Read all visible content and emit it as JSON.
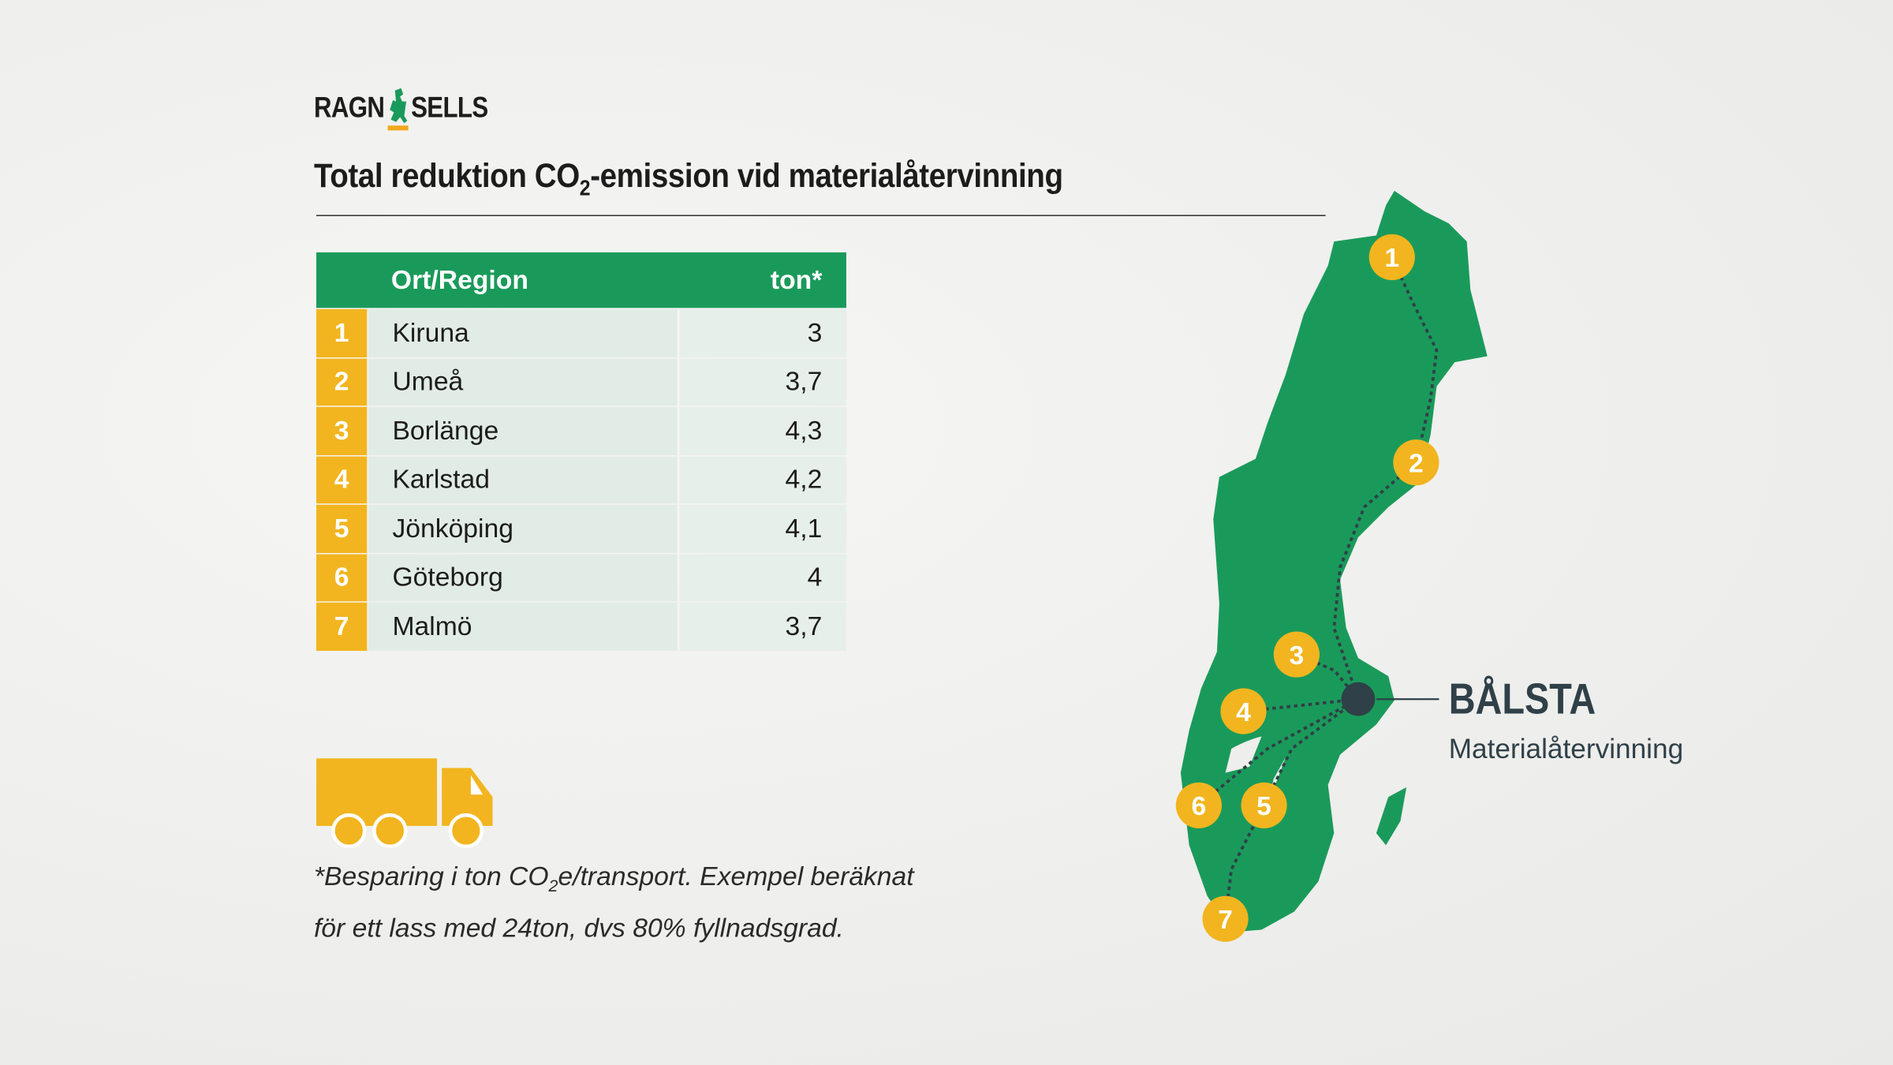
{
  "logo": {
    "left": "RAGN",
    "right": "SELLS"
  },
  "title": {
    "pre": "Total reduktion CO",
    "sub": "2",
    "post": "-emission vid materialåtervinning"
  },
  "table": {
    "headers": [
      "Ort/Region",
      "ton*"
    ],
    "rows": [
      {
        "num": "1",
        "city": "Kiruna",
        "ton": "3"
      },
      {
        "num": "2",
        "city": "Umeå",
        "ton": "3,7"
      },
      {
        "num": "3",
        "city": "Borlänge",
        "ton": "4,3"
      },
      {
        "num": "4",
        "city": "Karlstad",
        "ton": "4,2"
      },
      {
        "num": "5",
        "city": "Jönköping",
        "ton": "4,1"
      },
      {
        "num": "6",
        "city": "Göteborg",
        "ton": "4"
      },
      {
        "num": "7",
        "city": "Malmö",
        "ton": "3,7"
      }
    ]
  },
  "footnote": {
    "line1_pre": "*Besparing i ton CO",
    "line1_sub": "2",
    "line1_post": "e/transport. Exempel beräknat",
    "line2": "för ett lass med 24ton, dvs 80% fyllnadsgrad."
  },
  "map": {
    "markers": [
      "1",
      "2",
      "3",
      "4",
      "5",
      "6",
      "7"
    ],
    "hub": "BÅLSTA",
    "hub_sub": "Materialåtervinning"
  },
  "colors": {
    "green": "#1a9a5a",
    "yellow": "#f2b51f",
    "dark": "#2f4048"
  }
}
